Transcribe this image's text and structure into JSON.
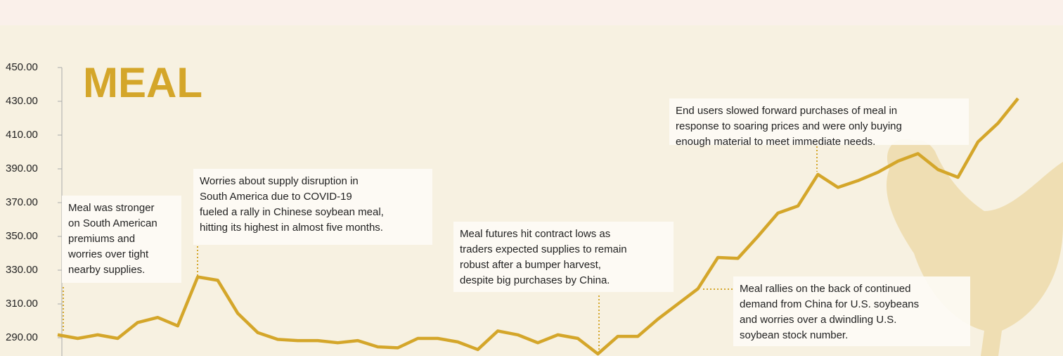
{
  "chart_data": {
    "type": "line",
    "title": "MEAL",
    "color": "#d4a62a",
    "values": [
      291.7,
      289.6,
      291.7,
      289.6,
      299,
      302,
      297,
      326,
      324,
      304.5,
      293,
      289,
      288.3,
      288.3,
      287,
      288.3,
      284.6,
      284,
      289.6,
      289.6,
      287.5,
      283,
      294,
      291.7,
      287,
      291.7,
      289.6,
      280.4,
      290.8,
      290.8,
      301,
      310,
      319,
      337.5,
      337,
      350,
      363.8,
      368,
      386.7,
      379,
      383,
      388,
      394.6,
      399,
      389.6,
      385,
      406,
      417,
      431.7
    ],
    "ylim": [
      280,
      450
    ],
    "yticks": [
      {
        "value": 290,
        "label": "290.00"
      },
      {
        "value": 310,
        "label": "310.00"
      },
      {
        "value": 330,
        "label": "330.00"
      },
      {
        "value": 350,
        "label": "350.00"
      },
      {
        "value": 370,
        "label": "370.00"
      },
      {
        "value": 390,
        "label": "390.00"
      },
      {
        "value": 410,
        "label": "410.00"
      },
      {
        "value": 430,
        "label": "430.00"
      },
      {
        "value": 450,
        "label": "450.00"
      }
    ],
    "annotations": [
      [
        "Meal was stronger",
        "on South American",
        "premiums and",
        "worries over tight",
        "nearby supplies."
      ],
      [
        "Worries about supply disruption in",
        "South America due to COVID-19",
        "fueled a rally in Chinese soybean meal,",
        "hitting its highest in almost five months."
      ],
      [
        "Meal futures hit contract lows as",
        "traders expected supplies to remain",
        "robust after a bumper harvest,",
        "despite big purchases by China."
      ],
      [
        "End users slowed forward purchases of meal in",
        "response to soaring prices and were only buying",
        "enough material to meet immediate needs."
      ],
      [
        "Meal rallies on the back of continued",
        "demand from China for U.S. soybeans",
        "and worries over a dwindling U.S.",
        "soybean stock number."
      ]
    ]
  }
}
